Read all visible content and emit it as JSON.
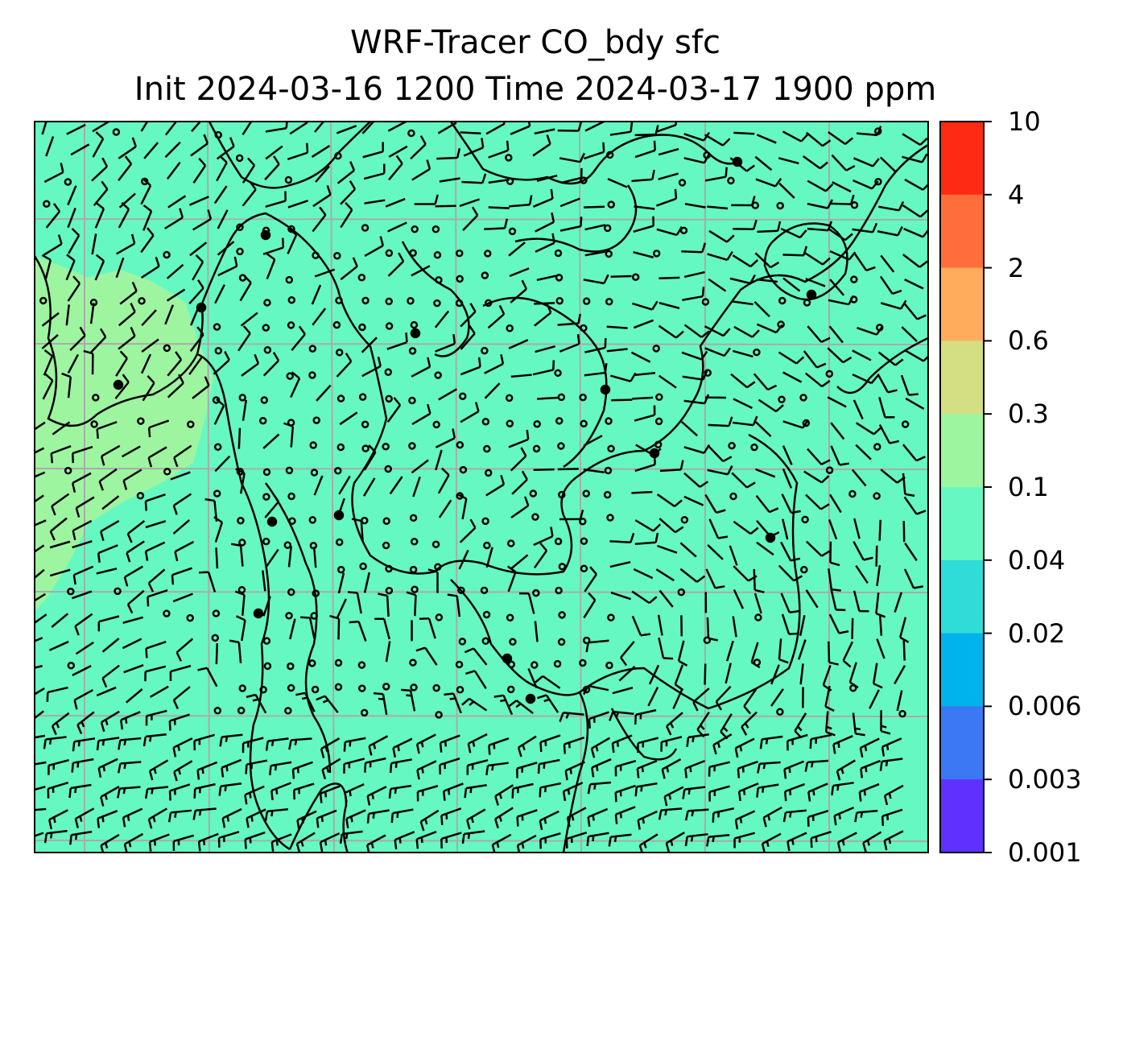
{
  "title": {
    "line1": "WRF-Tracer CO_bdy sfc",
    "line2": "Init 2024-03-16 1200 Time 2024-03-17 1900 ppm"
  },
  "colorbar": {
    "levels": [
      {
        "label": "10",
        "color": "#ff2a14"
      },
      {
        "label": "4",
        "color": "#ff6e3a"
      },
      {
        "label": "2",
        "color": "#ffad5c"
      },
      {
        "label": "0.6",
        "color": "#d4de82"
      },
      {
        "label": "0.3",
        "color": "#9ef5a0"
      },
      {
        "label": "0.1",
        "color": "#66f8c2"
      },
      {
        "label": "0.04",
        "color": "#2fdcd8"
      },
      {
        "label": "0.02",
        "color": "#00b3ea"
      },
      {
        "label": "0.006",
        "color": "#3a78f4"
      },
      {
        "label": "0.003",
        "color": "#5f30ff"
      },
      {
        "label": "0.001",
        "color": ""
      }
    ]
  },
  "map": {
    "background_color": "#66f8c2",
    "highlight_color": "#9ef5a0",
    "gridline_color": "#aaaaaa",
    "coastline_color": "#000000",
    "wind_barb_color": "#000000"
  }
}
